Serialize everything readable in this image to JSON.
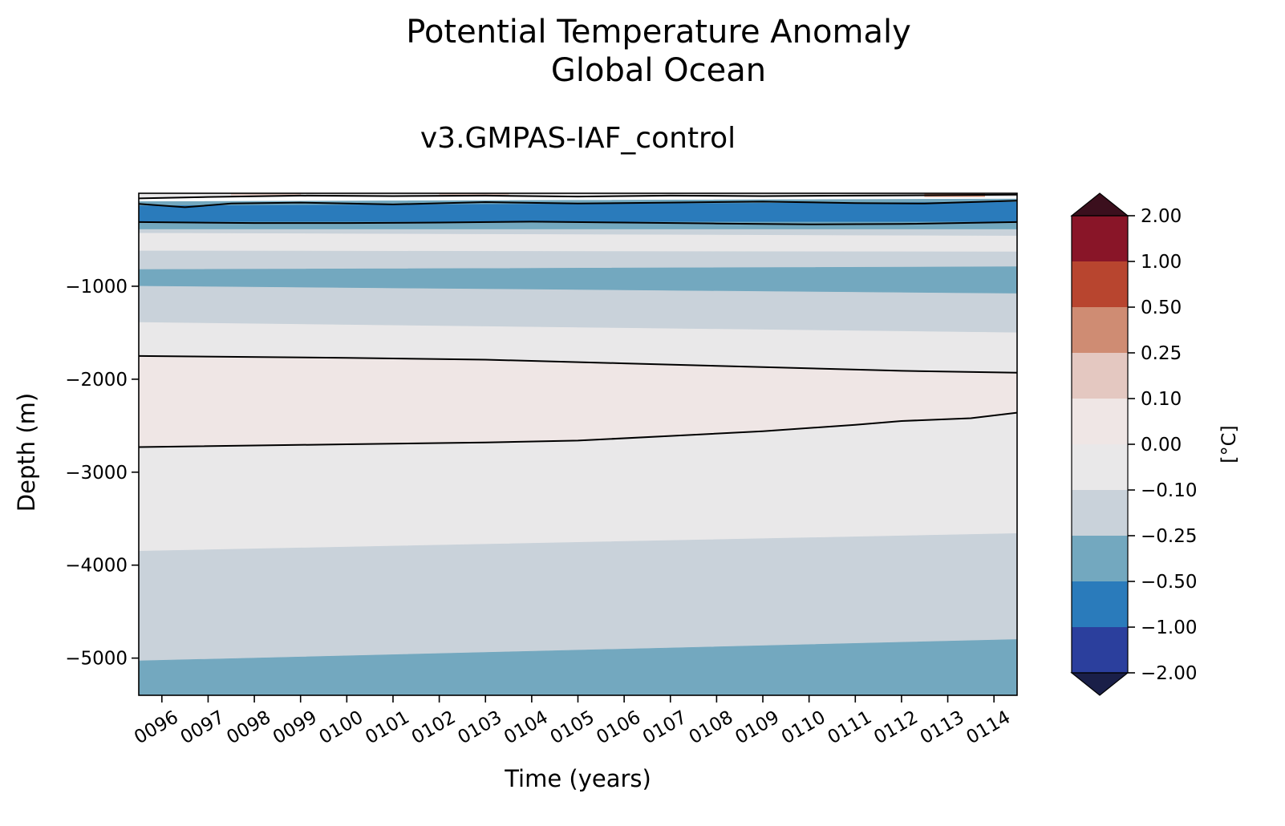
{
  "chart_data": {
    "type": "heatmap",
    "title": [
      "Potential Temperature Anomaly",
      "Global Ocean"
    ],
    "subtitle": "v3.GMPAS-IAF_control",
    "xlabel": "Time (years)",
    "ylabel": "Depth (m)",
    "x_range": [
      95.5,
      114.5
    ],
    "y_range": [
      -5400,
      0
    ],
    "x_ticks": [
      "0096",
      "0097",
      "0098",
      "0099",
      "0100",
      "0101",
      "0102",
      "0103",
      "0104",
      "0105",
      "0106",
      "0107",
      "0108",
      "0109",
      "0110",
      "0111",
      "0112",
      "0113",
      "0114"
    ],
    "y_ticks": [
      -1000,
      -2000,
      -3000,
      -4000,
      -5000
    ],
    "y_tick_labels": [
      "−1000",
      "−2000",
      "−3000",
      "−4000",
      "−5000"
    ],
    "colorbar": {
      "label": "[°C]",
      "levels": [
        "2.00",
        "1.00",
        "0.50",
        "0.25",
        "0.10",
        "0.00",
        "−0.10",
        "−0.25",
        "−0.50",
        "−1.00",
        "−2.00"
      ],
      "colors": [
        "#891528",
        "#b8452f",
        "#cf8c73",
        "#e4c8c1",
        "#efe6e5",
        "#e9e8e9",
        "#c9d2da",
        "#73a8bf",
        "#2a7bbb",
        "#2b3f9d"
      ],
      "over_color": "#3b0f1d",
      "under_color": "#1a1f48",
      "extend": "both"
    },
    "bands": [
      {
        "range": "-1.00 to -0.50",
        "color": "#2a7bbb",
        "top": [
          [
            95.5,
            -130
          ],
          [
            114.5,
            -90
          ]
        ],
        "bottom": [
          [
            95.5,
            -310
          ],
          [
            114.5,
            -310
          ]
        ]
      },
      {
        "range": "-0.50 to -0.25",
        "color": "#73a8bf",
        "top": [
          [
            95.5,
            -310
          ],
          [
            114.5,
            -310
          ]
        ],
        "bottom": [
          [
            95.5,
            -390
          ],
          [
            114.5,
            -390
          ]
        ]
      },
      {
        "range": "-0.25 to -0.10",
        "color": "#c9d2da",
        "top": [
          [
            95.5,
            -390
          ],
          [
            114.5,
            -390
          ]
        ],
        "bottom": [
          [
            95.5,
            -430
          ],
          [
            114.5,
            -460
          ]
        ]
      },
      {
        "range": "-0.10 to 0.00",
        "color": "#e9e8e9",
        "top": [
          [
            95.5,
            -430
          ],
          [
            114.5,
            -460
          ]
        ],
        "bottom": [
          [
            95.5,
            -620
          ],
          [
            114.5,
            -630
          ]
        ]
      },
      {
        "range": "-0.25 to -0.10",
        "color": "#c9d2da",
        "top": [
          [
            95.5,
            -620
          ],
          [
            114.5,
            -630
          ]
        ],
        "bottom": [
          [
            95.5,
            -820
          ],
          [
            114.5,
            -790
          ]
        ]
      },
      {
        "range": "-0.50 to -0.25",
        "color": "#73a8bf",
        "top": [
          [
            95.5,
            -820
          ],
          [
            114.5,
            -790
          ]
        ],
        "bottom": [
          [
            95.5,
            -1000
          ],
          [
            114.5,
            -1080
          ]
        ]
      },
      {
        "range": "-0.25 to -0.10",
        "color": "#c9d2da",
        "top": [
          [
            95.5,
            -1000
          ],
          [
            114.5,
            -1080
          ]
        ],
        "bottom": [
          [
            95.5,
            -1390
          ],
          [
            114.5,
            -1500
          ]
        ]
      },
      {
        "range": "-0.10 to 0.00",
        "color": "#e9e8e9",
        "top": [
          [
            95.5,
            -1390
          ],
          [
            114.5,
            -1500
          ]
        ],
        "bottom": [
          [
            95.5,
            -1750
          ],
          [
            100,
            -1770
          ],
          [
            103,
            -1790
          ],
          [
            106,
            -1830
          ],
          [
            109,
            -1870
          ],
          [
            112,
            -1910
          ],
          [
            114.5,
            -1930
          ]
        ]
      },
      {
        "range": "0.00 to 0.10",
        "color": "#efe6e5",
        "top": [
          [
            95.5,
            -1750
          ],
          [
            100,
            -1770
          ],
          [
            103,
            -1790
          ],
          [
            106,
            -1830
          ],
          [
            109,
            -1870
          ],
          [
            112,
            -1910
          ],
          [
            114.5,
            -1930
          ]
        ],
        "bottom": [
          [
            95.5,
            -2730
          ],
          [
            100,
            -2700
          ],
          [
            103,
            -2680
          ],
          [
            105,
            -2660
          ],
          [
            107,
            -2610
          ],
          [
            109,
            -2560
          ],
          [
            111,
            -2490
          ],
          [
            112,
            -2450
          ],
          [
            113.5,
            -2420
          ],
          [
            114.5,
            -2360
          ]
        ]
      },
      {
        "range": "-0.10 to 0.00",
        "color": "#e9e8e9",
        "top": [
          [
            95.5,
            -2730
          ],
          [
            100,
            -2700
          ],
          [
            103,
            -2680
          ],
          [
            105,
            -2660
          ],
          [
            107,
            -2610
          ],
          [
            109,
            -2560
          ],
          [
            111,
            -2490
          ],
          [
            112,
            -2450
          ],
          [
            113.5,
            -2420
          ],
          [
            114.5,
            -2360
          ]
        ],
        "bottom": [
          [
            95.5,
            -3850
          ],
          [
            114.5,
            -3660
          ]
        ]
      },
      {
        "range": "-0.25 to -0.10",
        "color": "#c9d2da",
        "top": [
          [
            95.5,
            -3850
          ],
          [
            114.5,
            -3660
          ]
        ],
        "bottom": [
          [
            95.5,
            -5030
          ],
          [
            114.5,
            -4800
          ]
        ]
      },
      {
        "range": "-0.50 to -0.25",
        "color": "#73a8bf",
        "top": [
          [
            95.5,
            -5030
          ],
          [
            114.5,
            -4800
          ]
        ],
        "bottom": [
          [
            95.5,
            -5400
          ],
          [
            114.5,
            -5400
          ]
        ]
      }
    ],
    "surface_bands": [
      {
        "range": "-0.10 to 0.00",
        "color": "#e9e8e9",
        "top": [
          [
            95.5,
            0
          ],
          [
            114.5,
            0
          ]
        ],
        "bottom": [
          [
            95.5,
            -40
          ],
          [
            114.5,
            -40
          ]
        ]
      },
      {
        "range": "0.10 to 0.25",
        "color": "#e4c8c1",
        "top": [
          [
            97.5,
            0
          ],
          [
            99,
            0
          ]
        ],
        "bottom": [
          [
            97.5,
            -20
          ],
          [
            99,
            -20
          ]
        ]
      },
      {
        "range": "0.10 to 0.25",
        "color": "#e4c8c1",
        "top": [
          [
            102,
            0
          ],
          [
            103.5,
            0
          ]
        ],
        "bottom": [
          [
            102,
            -15
          ],
          [
            103.5,
            -15
          ]
        ]
      },
      {
        "range": "0.25 to 0.50",
        "color": "#cf8c73",
        "top": [
          [
            112.5,
            0
          ],
          [
            113.8,
            0
          ]
        ],
        "bottom": [
          [
            112.5,
            -35
          ],
          [
            113.8,
            -35
          ]
        ]
      },
      {
        "range": "-0.50 to -0.25",
        "color": "#73a8bf",
        "top": [
          [
            95.5,
            -90
          ],
          [
            114.5,
            -60
          ]
        ],
        "bottom": [
          [
            95.5,
            -130
          ],
          [
            114.5,
            -90
          ]
        ]
      }
    ],
    "contour_lines": [
      [
        [
          95.5,
          -55
        ],
        [
          97,
          -40
        ],
        [
          99,
          -25
        ],
        [
          101,
          -30
        ],
        [
          103,
          -25
        ],
        [
          105,
          -35
        ],
        [
          107,
          -25
        ],
        [
          109,
          -30
        ],
        [
          111,
          -25
        ],
        [
          113,
          -20
        ],
        [
          114.5,
          -15
        ]
      ],
      [
        [
          95.5,
          -115
        ],
        [
          96.5,
          -150
        ],
        [
          97.5,
          -110
        ],
        [
          99,
          -100
        ],
        [
          101,
          -120
        ],
        [
          103,
          -95
        ],
        [
          105,
          -110
        ],
        [
          107,
          -100
        ],
        [
          109,
          -90
        ],
        [
          111,
          -105
        ],
        [
          112.5,
          -110
        ],
        [
          113.5,
          -95
        ],
        [
          114.5,
          -80
        ]
      ],
      [
        [
          95.5,
          -310
        ],
        [
          98,
          -320
        ],
        [
          100,
          -320
        ],
        [
          102,
          -315
        ],
        [
          104,
          -305
        ],
        [
          106,
          -315
        ],
        [
          108,
          -325
        ],
        [
          110,
          -335
        ],
        [
          112,
          -330
        ],
        [
          114.5,
          -310
        ]
      ],
      [
        [
          95.5,
          -1750
        ],
        [
          100,
          -1770
        ],
        [
          103,
          -1790
        ],
        [
          106,
          -1830
        ],
        [
          109,
          -1870
        ],
        [
          112,
          -1910
        ],
        [
          114.5,
          -1930
        ]
      ],
      [
        [
          95.5,
          -2730
        ],
        [
          100,
          -2700
        ],
        [
          103,
          -2680
        ],
        [
          105,
          -2660
        ],
        [
          107,
          -2610
        ],
        [
          109,
          -2560
        ],
        [
          111,
          -2490
        ],
        [
          112,
          -2450
        ],
        [
          113.5,
          -2420
        ],
        [
          114.5,
          -2360
        ]
      ]
    ]
  }
}
